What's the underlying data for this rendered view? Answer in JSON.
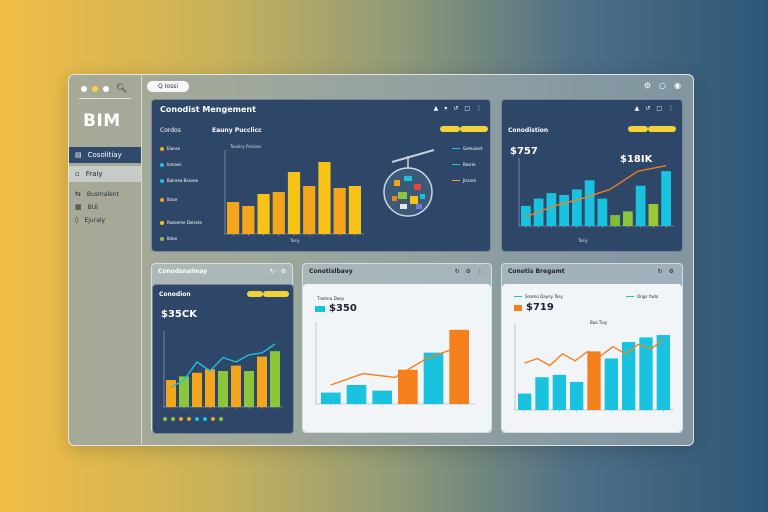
{
  "sidebar": {
    "brand": "BIM",
    "items": [
      {
        "label": "Cosolitiay",
        "icon": "folder-icon"
      },
      {
        "label": "Fraiy",
        "icon": "list-icon"
      },
      {
        "label": "Busmalent",
        "icon": "swap-icon"
      },
      {
        "label": "BUI",
        "icon": "grid-icon"
      },
      {
        "label": "Ejuraly",
        "icon": "layers-icon"
      }
    ]
  },
  "topbar": {
    "search_label": "Q Iossi"
  },
  "panels": {
    "main": {
      "title": "Conodist Mengement",
      "tab1": "Cordos",
      "tab2": "Eauny Pucclicc",
      "legend": [
        "Elanse",
        "Iomoes",
        "Balreea Basvee",
        "Ibsse",
        "Rezoeme Deleste",
        "Ibtae"
      ],
      "chart_label": "Tooolcy Pecloes",
      "x_label": "Tasiy",
      "right_legend": [
        "Gemusert",
        "Besrie",
        "Jlacem"
      ],
      "chart": {
        "type": "bar",
        "values": [
          32,
          28,
          40,
          42,
          62,
          48,
          72,
          46,
          48
        ],
        "colors": [
          "#f3a51c",
          "#f3a51c",
          "#f7c316",
          "#f3a51c",
          "#f7c316",
          "#f3a51c",
          "#f7c316",
          "#f3a51c",
          "#f7c316"
        ]
      }
    },
    "right": {
      "title": "Conodistion",
      "big1": "$757",
      "big2": "$18IK",
      "x_label": "Tasiy",
      "chart": {
        "bars": [
          22,
          30,
          36,
          34,
          40,
          50,
          30,
          12,
          16,
          44,
          24,
          60
        ],
        "colors": [
          "#19c3e0",
          "#19c3e0",
          "#19c3e0",
          "#19c3e0",
          "#19c3e0",
          "#19c3e0",
          "#19c3e0",
          "#7cbd3a",
          "#8cc63a",
          "#19c3e0",
          "#9bc832",
          "#19c3e0"
        ],
        "line": [
          10,
          22,
          30,
          40,
          60,
          66
        ]
      }
    },
    "bl": {
      "title": "Conodsnalmay",
      "inner_title": "Conodion",
      "big": "$35CK",
      "chart": {
        "bars": [
          30,
          34,
          38,
          42,
          40,
          46,
          40,
          56,
          62
        ],
        "colors": [
          "#f3a51c",
          "#8cc63a",
          "#f3a51c",
          "#f3a51c",
          "#8cc63a",
          "#f3a51c",
          "#8cc63a",
          "#f3a51c",
          "#8cc63a"
        ],
        "line": [
          22,
          30,
          50,
          40,
          55,
          50,
          58,
          60,
          70
        ]
      }
    },
    "bm": {
      "title": "Conotislbavy",
      "legend_text": "Tnamro Daey",
      "big": "$350",
      "chart": {
        "bars": [
          12,
          20,
          14,
          36,
          54,
          78
        ],
        "colors": [
          "#19c3e0",
          "#19c3e0",
          "#19c3e0",
          "#f3801c",
          "#19c3e0",
          "#f3801c"
        ],
        "line": [
          20,
          32,
          28,
          48,
          60
        ]
      }
    },
    "br": {
      "title": "Conotis Bregamt",
      "legend_a": "Snamo Dayny Tasy",
      "legend_b": "Ongs Yudo",
      "big": "$719",
      "chart_label": "Baa Tioy",
      "chart": {
        "bars": [
          14,
          28,
          30,
          24,
          50,
          44,
          58,
          62,
          64
        ],
        "colors": [
          "#19c3e0",
          "#19c3e0",
          "#19c3e0",
          "#19c3e0",
          "#f3801c",
          "#19c3e0",
          "#19c3e0",
          "#19c3e0",
          "#19c3e0"
        ],
        "line": [
          40,
          44,
          38,
          48,
          42,
          50,
          46,
          54,
          48,
          56,
          52,
          60
        ]
      }
    }
  }
}
